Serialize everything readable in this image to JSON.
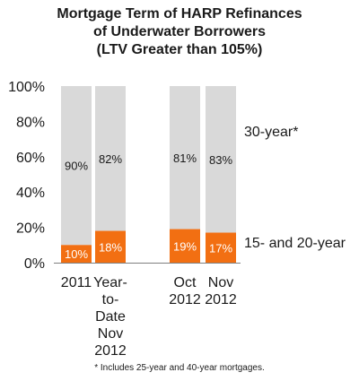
{
  "chart_data": {
    "type": "bar",
    "stacked": true,
    "title_lines": [
      "Mortgage Term of HARP Refinances",
      "of Underwater Borrowers",
      "(LTV Greater than 105%)"
    ],
    "categories": [
      [
        "2011"
      ],
      [
        "Year-",
        "to-",
        "Date",
        "Nov",
        "2012"
      ],
      [
        "Oct",
        "2012"
      ],
      [
        "Nov",
        "2012"
      ]
    ],
    "series": [
      {
        "name": "15- and 20-year",
        "values": [
          10,
          18,
          19,
          17
        ],
        "labels": [
          "10%",
          "18%",
          "19%",
          "17%"
        ],
        "color": "#f26f12"
      },
      {
        "name": "30-year*",
        "values": [
          90,
          82,
          81,
          83
        ],
        "labels": [
          "90%",
          "82%",
          "81%",
          "83%"
        ],
        "color": "#d9d9d9"
      }
    ],
    "y_ticks": [
      "0%",
      "20%",
      "40%",
      "60%",
      "80%",
      "100%"
    ],
    "ylim": [
      0,
      100
    ],
    "grid": false,
    "legend_placement": "right",
    "footnote": "* Includes 25-year and 40-year mortgages."
  }
}
